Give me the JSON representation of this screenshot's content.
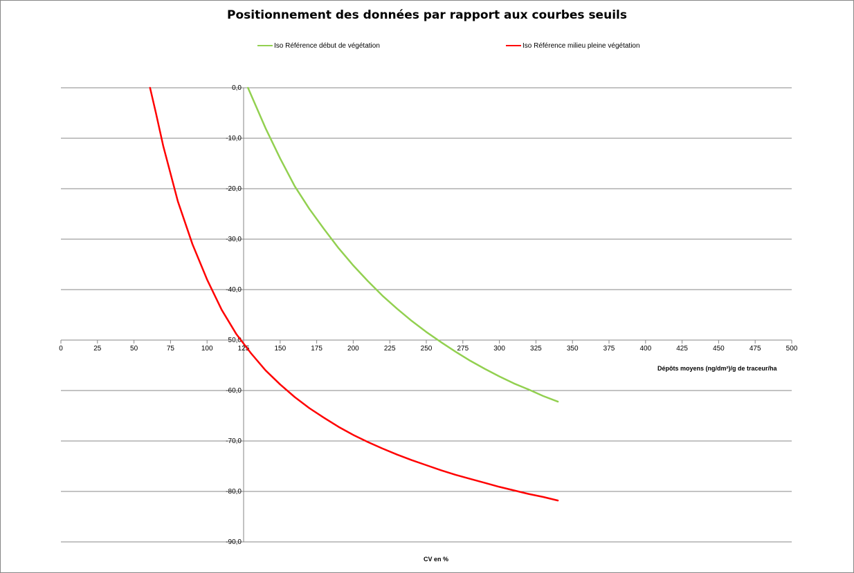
{
  "chart_data": {
    "type": "line",
    "title": "Positionnement des données par rapport aux courbes seuils",
    "xlabel": "Dépôts moyens (ng/dm²)/g de traceur/ha",
    "ylabel": "CV en %",
    "xlim": [
      0,
      500
    ],
    "ylim": [
      -90,
      0
    ],
    "x_ticks": [
      "0",
      "25",
      "50",
      "75",
      "100",
      "125",
      "150",
      "175",
      "200",
      "225",
      "250",
      "275",
      "300",
      "325",
      "350",
      "375",
      "400",
      "425",
      "450",
      "475",
      "500"
    ],
    "y_ticks": [
      "0,0",
      "-10,0",
      "-20,0",
      "-30,0",
      "-40,0",
      "-50,0",
      "-60,0",
      "-70,0",
      "-80,0",
      "-90,0"
    ],
    "grid": "horizontal",
    "legend_position": "top",
    "series": [
      {
        "name": "Iso Référence début de végétation",
        "color": "#92D050",
        "points": [
          [
            128,
            0
          ],
          [
            140,
            -8
          ],
          [
            150,
            -14
          ],
          [
            160,
            -19.5
          ],
          [
            170,
            -24
          ],
          [
            180,
            -28
          ],
          [
            190,
            -31.8
          ],
          [
            200,
            -35.2
          ],
          [
            210,
            -38.3
          ],
          [
            220,
            -41.2
          ],
          [
            230,
            -43.8
          ],
          [
            240,
            -46.2
          ],
          [
            250,
            -48.4
          ],
          [
            260,
            -50.4
          ],
          [
            270,
            -52.3
          ],
          [
            280,
            -54.1
          ],
          [
            290,
            -55.7
          ],
          [
            300,
            -57.2
          ],
          [
            310,
            -58.6
          ],
          [
            320,
            -59.8
          ],
          [
            330,
            -61.1
          ],
          [
            340,
            -62.2
          ]
        ]
      },
      {
        "name": "Iso Référence milieu pleine végétation",
        "color": "#FF0000",
        "points": [
          [
            61,
            0
          ],
          [
            65,
            -5
          ],
          [
            70,
            -11.5
          ],
          [
            75,
            -17
          ],
          [
            80,
            -22.5
          ],
          [
            90,
            -31
          ],
          [
            100,
            -38
          ],
          [
            110,
            -44
          ],
          [
            120,
            -48.8
          ],
          [
            130,
            -52.6
          ],
          [
            140,
            -56
          ],
          [
            150,
            -58.8
          ],
          [
            160,
            -61.3
          ],
          [
            170,
            -63.5
          ],
          [
            180,
            -65.4
          ],
          [
            190,
            -67.2
          ],
          [
            200,
            -68.8
          ],
          [
            210,
            -70.2
          ],
          [
            220,
            -71.5
          ],
          [
            230,
            -72.7
          ],
          [
            240,
            -73.8
          ],
          [
            250,
            -74.8
          ],
          [
            260,
            -75.8
          ],
          [
            270,
            -76.7
          ],
          [
            280,
            -77.5
          ],
          [
            290,
            -78.3
          ],
          [
            300,
            -79.1
          ],
          [
            310,
            -79.8
          ],
          [
            320,
            -80.5
          ],
          [
            330,
            -81.1
          ],
          [
            340,
            -81.8
          ]
        ]
      }
    ]
  }
}
